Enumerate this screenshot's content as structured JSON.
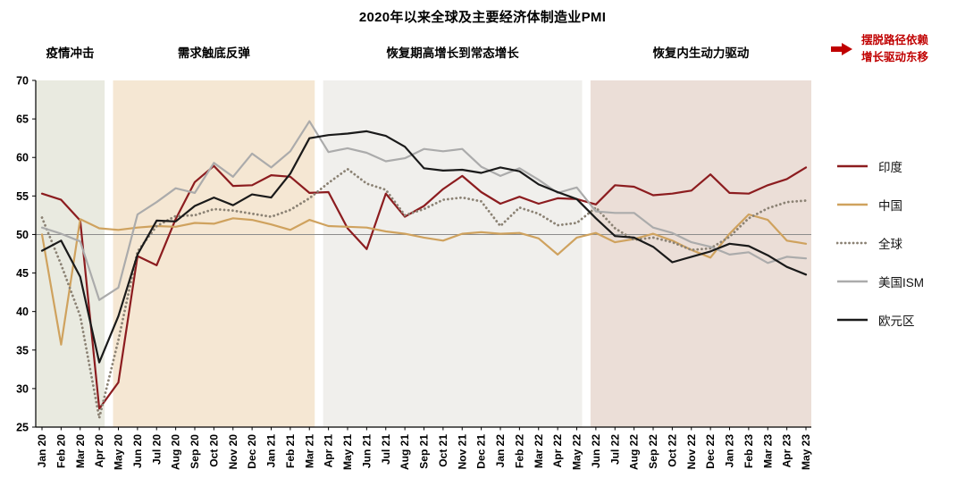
{
  "annotation": {
    "line1": "摆脱路径依赖",
    "line2": "增长驱动东移",
    "color": "#c00000"
  },
  "chart_data": {
    "type": "line",
    "title": "2020年以来全球及主要经济体制造业PMI",
    "ylim": [
      25,
      70
    ],
    "yticks": [
      25,
      30,
      35,
      40,
      45,
      50,
      55,
      60,
      65,
      70
    ],
    "refline": 50,
    "legend_position": "right",
    "categories": [
      "Jan 20",
      "Feb 20",
      "Mar 20",
      "Apr 20",
      "May 20",
      "Jun 20",
      "Jul 20",
      "Aug 20",
      "Sep 20",
      "Oct 20",
      "Nov 20",
      "Dec 20",
      "Jan 21",
      "Feb 21",
      "Mar 21",
      "Apr 21",
      "May 21",
      "Jun 21",
      "Jul 21",
      "Aug 21",
      "Sep 21",
      "Oct 21",
      "Nov 21",
      "Dec 21",
      "Jan 22",
      "Feb 22",
      "Mar 22",
      "Apr 22",
      "May 22",
      "Jun 22",
      "Jul 22",
      "Aug 22",
      "Sep 22",
      "Oct 22",
      "Nov 22",
      "Dec 22",
      "Jan 23",
      "Feb 23",
      "Mar 23",
      "Apr 23",
      "May 23"
    ],
    "regions": [
      {
        "id": "pandemic-shock",
        "label": "疫情冲击",
        "start": 0,
        "end": 3,
        "color": "#e9eae0"
      },
      {
        "id": "demand-rebound",
        "label": "需求触底反弹",
        "start": 4,
        "end": 14,
        "color": "#f5e7d3"
      },
      {
        "id": "recovery-to-normal",
        "label": "恢复期高增长到常态增长",
        "start": 15,
        "end": 28,
        "color": "#f0efec"
      },
      {
        "id": "endogenous-momentum",
        "label": "恢复内生动力驱动",
        "start": 29,
        "end": 40,
        "color": "#ebded7"
      }
    ],
    "series": [
      {
        "id": "india",
        "name": "印度",
        "color": "#8c1c1f",
        "style": "solid",
        "width": 2.2,
        "values": [
          55.3,
          54.5,
          51.8,
          27.4,
          30.8,
          47.2,
          46.0,
          52.0,
          56.8,
          58.9,
          56.3,
          56.4,
          57.7,
          57.5,
          55.4,
          55.5,
          50.8,
          48.1,
          55.3,
          52.3,
          53.7,
          55.9,
          57.6,
          55.5,
          54.0,
          54.9,
          54.0,
          54.7,
          54.6,
          53.9,
          56.4,
          56.2,
          55.1,
          55.3,
          55.7,
          57.8,
          55.4,
          55.3,
          56.4,
          57.2,
          58.7
        ]
      },
      {
        "id": "china",
        "name": "中国",
        "color": "#cfa25e",
        "style": "solid",
        "width": 2.2,
        "values": [
          50.0,
          35.7,
          52.0,
          50.8,
          50.6,
          50.9,
          51.1,
          51.0,
          51.5,
          51.4,
          52.1,
          51.9,
          51.3,
          50.6,
          51.9,
          51.1,
          51.0,
          50.9,
          50.4,
          50.1,
          49.6,
          49.2,
          50.1,
          50.3,
          50.1,
          50.2,
          49.5,
          47.4,
          49.6,
          50.2,
          49.0,
          49.4,
          50.1,
          49.2,
          48.0,
          47.0,
          50.1,
          52.6,
          51.9,
          49.2,
          48.8
        ]
      },
      {
        "id": "global",
        "name": "全球",
        "color": "#8b8274",
        "style": "dotted",
        "width": 2.8,
        "values": [
          52.2,
          46.1,
          39.4,
          26.2,
          36.3,
          47.8,
          51.1,
          52.4,
          52.5,
          53.3,
          53.1,
          52.7,
          52.3,
          53.2,
          54.7,
          56.7,
          58.5,
          56.6,
          55.8,
          52.5,
          53.3,
          54.5,
          54.8,
          54.3,
          51.1,
          53.5,
          52.7,
          51.2,
          51.5,
          53.5,
          50.8,
          49.3,
          49.6,
          49.0,
          48.0,
          48.2,
          49.7,
          52.1,
          53.4,
          54.2,
          54.4
        ]
      },
      {
        "id": "us-ism",
        "name": "美国ISM",
        "color": "#ababab",
        "style": "solid",
        "width": 2.2,
        "values": [
          50.9,
          50.1,
          49.1,
          41.5,
          43.1,
          52.6,
          54.2,
          56.0,
          55.4,
          59.3,
          57.5,
          60.5,
          58.7,
          60.8,
          64.7,
          60.7,
          61.2,
          60.6,
          59.5,
          59.9,
          61.1,
          60.8,
          61.1,
          58.8,
          57.6,
          58.6,
          57.1,
          55.4,
          56.1,
          53.0,
          52.8,
          52.8,
          50.9,
          50.2,
          49.0,
          48.4,
          47.4,
          47.7,
          46.3,
          47.1,
          46.9
        ]
      },
      {
        "id": "eurozone",
        "name": "欧元区",
        "color": "#1a1a1a",
        "style": "solid",
        "width": 2.2,
        "values": [
          47.9,
          49.2,
          44.5,
          33.4,
          39.4,
          47.4,
          51.8,
          51.7,
          53.7,
          54.8,
          53.8,
          55.2,
          54.8,
          57.9,
          62.5,
          62.9,
          63.1,
          63.4,
          62.8,
          61.4,
          58.6,
          58.3,
          58.4,
          58.0,
          58.7,
          58.2,
          56.5,
          55.5,
          54.6,
          52.1,
          49.8,
          49.6,
          48.4,
          46.4,
          47.1,
          47.8,
          48.8,
          48.5,
          47.3,
          45.8,
          44.8
        ]
      }
    ]
  }
}
